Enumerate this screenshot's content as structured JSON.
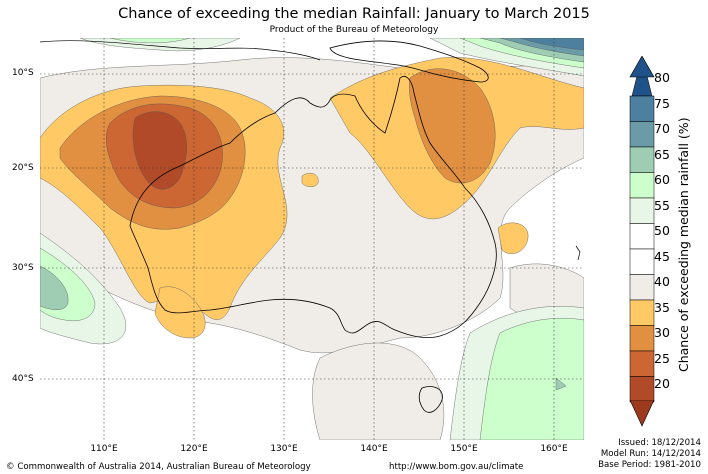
{
  "map": {
    "title": "Chance of exceeding the median Rainfall: January to March 2015",
    "subtitle": "Product of the Bureau of Meteorology",
    "lat_labels": [
      "10°S",
      "20°S",
      "30°S",
      "40°S"
    ],
    "lon_labels": [
      "110°E",
      "120°E",
      "130°E",
      "140°E",
      "150°E",
      "160°E"
    ]
  },
  "legend": {
    "title": "Chance of exceeding median rainfall (%)",
    "ticks": [
      "80",
      "75",
      "70",
      "65",
      "60",
      "55",
      "50",
      "45",
      "40",
      "35",
      "30",
      "25",
      "20"
    ],
    "colors": [
      "#2a5f8e",
      "#4d7f9e",
      "#6b9ba6",
      "#9ecdb4",
      "#ccffcc",
      "#e8f6e8",
      "#ffffff",
      "#ffffff",
      "#f0ede8",
      "#ffc966",
      "#e09040",
      "#cc6633",
      "#b04a28"
    ],
    "top_arrow_color": "#1f5288",
    "bottom_arrow_color": "#9c3a1e"
  },
  "footer": {
    "copyright": "© Commonwealth of Australia 2014, Australian Bureau of Meteorology",
    "url": "http://www.bom.gov.au/climate",
    "issued": "Issued: 18/12/2014",
    "model_run": "Model Run: 14/12/2014",
    "base_period": "Base Period: 1981-2010"
  }
}
